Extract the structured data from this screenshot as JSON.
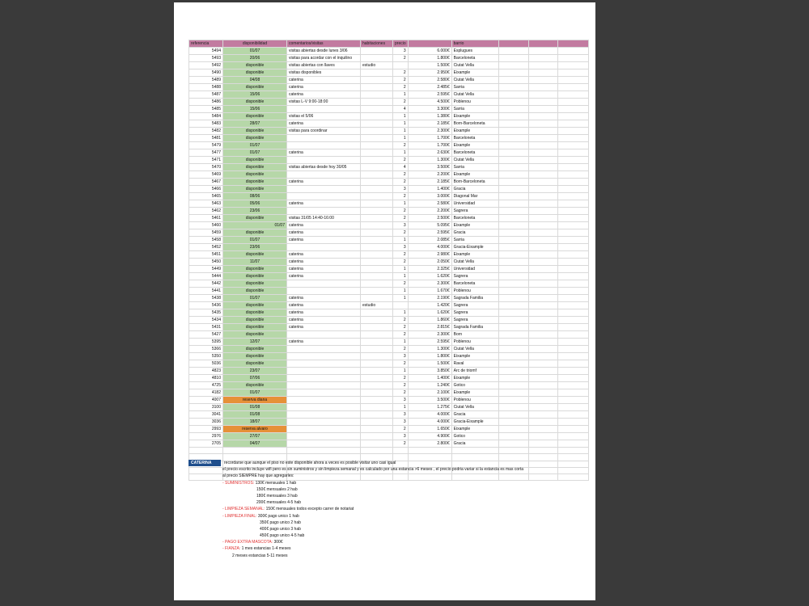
{
  "headers": [
    "referencia",
    "disponibilidad",
    "comentarios/visitas",
    "habitaciones",
    "precio",
    "",
    "barrio",
    "",
    "",
    ""
  ],
  "rows": [
    [
      "5494",
      "01/07",
      "visitas abiertas desde lunes 3/06",
      "",
      "3",
      "6.000€",
      "Esplugues"
    ],
    [
      "5493",
      "20/06",
      "visitas para acordar con el inquilino",
      "",
      "2",
      "1.800€",
      "Barceloneta"
    ],
    [
      "5492",
      "disponible",
      "visitas abiertas con llaves",
      "estudio",
      "",
      "1.500€",
      "Ciutat Vella"
    ],
    [
      "5490",
      "disponible",
      "visitas disponibles",
      "",
      "2",
      "2.950€",
      "Eixample"
    ],
    [
      "5489",
      "04/08",
      "caterina",
      "",
      "2",
      "2.580€",
      "Ciutat Vella"
    ],
    [
      "5488",
      "disponible",
      "caterina",
      "",
      "2",
      "2.485€",
      "Sarria"
    ],
    [
      "5487",
      "15/06",
      "caterina",
      "",
      "1",
      "2.595€",
      "Ciutat Vella"
    ],
    [
      "5486",
      "disponible",
      "visitas L-V 9:00-18:00",
      "",
      "2",
      "4.500€",
      "Poblenou"
    ],
    [
      "5485",
      "15/06",
      "",
      "",
      "4",
      "3.300€",
      "Sarria"
    ],
    [
      "5484",
      "disponible",
      "visitas el 5/06",
      "",
      "1",
      "1.380€",
      "Eixample"
    ],
    [
      "5483",
      "28/07",
      "caterina",
      "",
      "1",
      "2.185€",
      "Born-Barceloneta"
    ],
    [
      "5482",
      "disponible",
      "visitas para coordinar",
      "",
      "1",
      "2.300€",
      "Eixample"
    ],
    [
      "5481",
      "disponible",
      "",
      "",
      "1",
      "1.700€",
      "Barceloneta"
    ],
    [
      "5479",
      "01/07",
      "",
      "",
      "2",
      "1.700€",
      "Eixample"
    ],
    [
      "5477",
      "01/07",
      "caterina",
      "",
      "1",
      "2.630€",
      "Barceloneta"
    ],
    [
      "5471",
      "disponible",
      "",
      "",
      "2",
      "1.300€",
      "Ciutat Vella"
    ],
    [
      "5470",
      "disponible",
      "visitas abiertas desde hoy 30/05",
      "",
      "4",
      "3.500€",
      "Sarria"
    ],
    [
      "5469",
      "disponible",
      "",
      "",
      "2",
      "2.200€",
      "Eixample"
    ],
    [
      "5467",
      "disponible",
      "caterina",
      "",
      "2",
      "2.185€",
      "Born-Barceloneta"
    ],
    [
      "5466",
      "disponible",
      "",
      "",
      "3",
      "1.400€",
      "Gracia"
    ],
    [
      "5465",
      "08/06",
      "",
      "",
      "2",
      "3.000€",
      "Diagonal Mar"
    ],
    [
      "5463",
      "05/06",
      "caterina",
      "",
      "1",
      "2.580€",
      "Universidad"
    ],
    [
      "5462",
      "23/06",
      "",
      "",
      "2",
      "2.200€",
      "Sagrera"
    ],
    [
      "5461",
      "disponible",
      "visitas 31/05 14:40-16:00",
      "",
      "2",
      "2.500€",
      "Barceloneta"
    ],
    [
      "5460",
      "01/07",
      "caterina",
      "",
      "3",
      "5.095€",
      "Eixample"
    ],
    [
      "5459",
      "disponible",
      "caterina",
      "",
      "2",
      "2.595€",
      "Gracia"
    ],
    [
      "5458",
      "01/07",
      "caterina",
      "",
      "1",
      "2.085€",
      "Sarria"
    ],
    [
      "5452",
      "23/06",
      "",
      "",
      "3",
      "4.000€",
      "Gracia-Eixample"
    ],
    [
      "5451",
      "disponible",
      "caterina",
      "",
      "2",
      "2.980€",
      "Eixample"
    ],
    [
      "5450",
      "11/07",
      "caterina",
      "",
      "2",
      "2.050€",
      "Ciutat Vella"
    ],
    [
      "5449",
      "disponible",
      "caterina",
      "",
      "1",
      "2.325€",
      "Universidad"
    ],
    [
      "5444",
      "disponible",
      "caterina",
      "",
      "1",
      "1.620€",
      "Sagrera"
    ],
    [
      "5442",
      "disponible",
      "",
      "",
      "2",
      "2.300€",
      "Barceloneta"
    ],
    [
      "5441",
      "disponible",
      "",
      "",
      "1",
      "1.670€",
      "Poblenou"
    ],
    [
      "5438",
      "01/07",
      "caterina",
      "",
      "1",
      "2.190€",
      "Sagrada Familia"
    ],
    [
      "5436",
      "disponible",
      "caterina",
      "estudio",
      "",
      "1.420€",
      "Sagrera"
    ],
    [
      "5435",
      "disponible",
      "caterina",
      "",
      "1",
      "1.620€",
      "Sagrera"
    ],
    [
      "5434",
      "disponible",
      "caterina",
      "",
      "2",
      "1.860€",
      "Sagrera"
    ],
    [
      "5431",
      "disponible",
      "caterina",
      "",
      "2",
      "2.815€",
      "Sagrada Familia"
    ],
    [
      "5427",
      "disponible",
      "",
      "",
      "2",
      "2.300€",
      "Born"
    ],
    [
      "5395",
      "12/07",
      "caterina",
      "",
      "1",
      "2.595€",
      "Poblenou"
    ],
    [
      "5366",
      "disponible",
      "",
      "",
      "2",
      "1.300€",
      "Ciutat Vella"
    ],
    [
      "5350",
      "disponible",
      "",
      "",
      "3",
      "1.800€",
      "Eixample"
    ],
    [
      "5036",
      "disponible",
      "",
      "",
      "2",
      "1.500€",
      "Raval"
    ],
    [
      "4823",
      "23/07",
      "",
      "",
      "1",
      "3.850€",
      "Arc de triomf"
    ],
    [
      "4810",
      "07/06",
      "",
      "",
      "2",
      "1.400€",
      "Eixample"
    ],
    [
      "4725",
      "disponible",
      "",
      "",
      "2",
      "1.240€",
      "Gotico"
    ],
    [
      "4182",
      "01/07",
      "",
      "",
      "2",
      "2.100€",
      "Eixample"
    ],
    [
      "4007",
      "reserva diana",
      "",
      "",
      "3",
      "3.500€",
      "Poblenou"
    ],
    [
      "3100",
      "01/08",
      "",
      "",
      "1",
      "1.275€",
      "Ciutat Vella"
    ],
    [
      "3041",
      "01/08",
      "",
      "",
      "3",
      "4.000€",
      "Gracia"
    ],
    [
      "3036",
      "18/07",
      "",
      "",
      "3",
      "4.000€",
      "Gracia-Eixample"
    ],
    [
      "2993",
      "reserva alvaro",
      "",
      "",
      "2",
      "1.650€",
      "Eixample"
    ],
    [
      "2976",
      "27/07",
      "",
      "",
      "3",
      "4.900€",
      "Gotico"
    ],
    [
      "2705",
      "04/07",
      "",
      "",
      "2",
      "2.800€",
      "Gracia"
    ]
  ],
  "notes": {
    "tag": "CATERINA",
    "line1": "recordarse que aunque el piso no este disponible ahora a veces es posible visitar uno casi igual",
    "line2": "el precio escrito incluye wifi pero es sin suministros y sin limpieza semanal y es calculado por una estancia >6 meses , el precio podria variar si la estancia es mas corta",
    "line3": "al precio SIEMPRE hay que agregarles:",
    "sum_label": "- SUMINISTROS:",
    "sum1": "130€ mensuales 1 hab",
    "sum2": "150€ mensuales 2 hab",
    "sum3": "180€ mensuales 3 hab",
    "sum4": "200€ mensuales 4-5 hab",
    "limp_sem_label": "- LIMPIEZA SEMANAL:",
    "limp_sem": "150€ mensuales todos excepto carrer de notariat",
    "limp_fin_label": "- LIMPIEZA FINAL:",
    "lf1": "300€ pago unico 1 hab",
    "lf2": "350€ pago unico 2 hab",
    "lf3": "400€ pago unico 3 hab",
    "lf4": "450€ pago unico 4-5 hab",
    "mascota_label": "- PAGO EXTRA MASCOTA:",
    "mascota": "300€",
    "fianza_label": "- FIANZA:",
    "fianza1": "1 mes estancias 1-4 meses",
    "fianza2": "2 meses estancias 5-11 meses"
  }
}
